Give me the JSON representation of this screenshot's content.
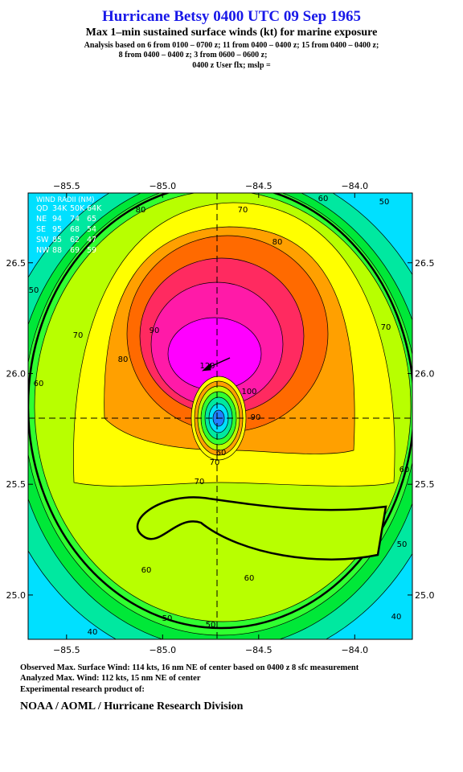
{
  "header": {
    "title": "Hurricane Betsy 0400 UTC 09 Sep 1965",
    "subtitle": "Max 1–min sustained surface winds (kt) for marine exposure",
    "analysis_line1": "Analysis based on  6 from 0100 – 0700 z;  11 from 0400 – 0400 z;  15 from 0400 – 0400 z;",
    "analysis_line2": "8 from 0400 – 0400 z;  3 from 0600 – 0600 z;",
    "analysis_line3": "0400 z User flx; mslp ="
  },
  "map": {
    "xlim": [
      -85.7,
      -83.7
    ],
    "ylim": [
      24.8,
      26.815
    ],
    "xticks": [
      {
        "value": -85.5,
        "label": "−85.5"
      },
      {
        "value": -85.0,
        "label": "−85.0"
      },
      {
        "value": -84.5,
        "label": "−84.5"
      },
      {
        "value": -84.0,
        "label": "−84.0"
      }
    ],
    "yticks": [
      {
        "value": 25.0,
        "label": "25.0"
      },
      {
        "value": 25.5,
        "label": "25.5"
      },
      {
        "value": 26.0,
        "label": "26.0"
      },
      {
        "value": 26.5,
        "label": "26.5"
      }
    ],
    "contour_labels": [
      80,
      60,
      50,
      70,
      80,
      50,
      70,
      90,
      80,
      60,
      70,
      120,
      100,
      90,
      60,
      70,
      70,
      60,
      50,
      60,
      60,
      50,
      50,
      40,
      40
    ],
    "wind_radii": {
      "title": "WIND RADII (NM)",
      "columns": [
        "QD",
        "34K",
        "50K",
        "64K"
      ],
      "rows": [
        [
          "NE",
          "94",
          "74",
          "65"
        ],
        [
          "SE",
          "95",
          "68",
          "54"
        ],
        [
          "SW",
          "85",
          "62",
          "47"
        ],
        [
          "NW",
          "88",
          "69",
          "59"
        ]
      ]
    }
  },
  "footer": {
    "observed": "Observed Max. Surface Wind: 114 kts, 16 nm NE of center based on 0400 z 8 sfc measurement",
    "analyzed": "Analyzed Max. Wind: 112 kts, 15 nm NE of center",
    "experimental": "Experimental research product of:",
    "org": "NOAA / AOML / Hurricane Research Division"
  }
}
